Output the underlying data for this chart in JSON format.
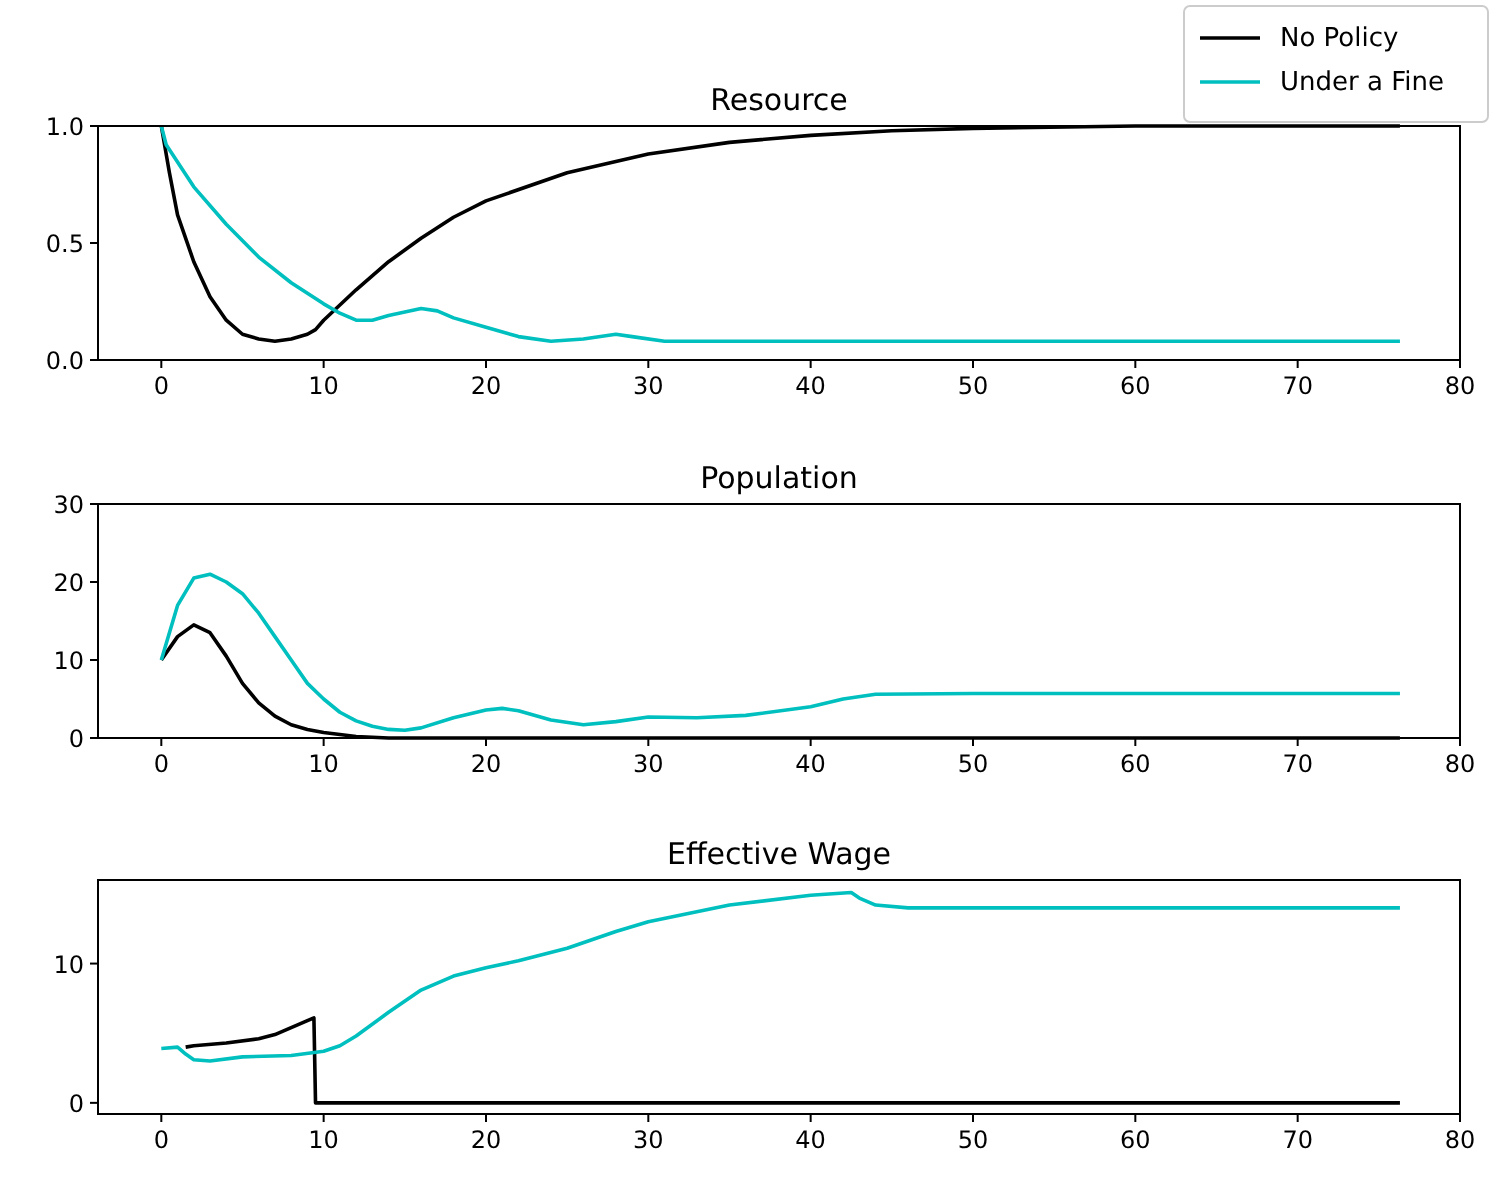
{
  "chart_data": [
    {
      "type": "line",
      "title": "Resource",
      "xlim": [
        -3.9,
        80
      ],
      "xticks": [
        0,
        10,
        20,
        30,
        40,
        50,
        60,
        70,
        80
      ],
      "ylim": [
        0,
        1
      ],
      "yticks": [
        {
          "value": 0,
          "label": "0.0"
        },
        {
          "value": 0.5,
          "label": "0.5"
        },
        {
          "value": 1,
          "label": "1.0"
        }
      ],
      "grid": false,
      "legend": "top right",
      "series": [
        {
          "name": "No Policy",
          "color": "#000000",
          "x": [
            0,
            0.5,
            1,
            2,
            3,
            4,
            5,
            6,
            7,
            8,
            9,
            9.5,
            10,
            12,
            14,
            16,
            18,
            20,
            25,
            30,
            35,
            40,
            45,
            50,
            60,
            76.3
          ],
          "values": [
            1.0,
            0.8,
            0.62,
            0.42,
            0.27,
            0.17,
            0.11,
            0.09,
            0.08,
            0.09,
            0.11,
            0.13,
            0.17,
            0.3,
            0.42,
            0.52,
            0.61,
            0.68,
            0.8,
            0.88,
            0.93,
            0.96,
            0.98,
            0.99,
            1.0,
            1.0
          ]
        },
        {
          "name": "Under a Fine",
          "color": "#00bfbf",
          "x": [
            0,
            0.3,
            2,
            4,
            6,
            8,
            10,
            11,
            12,
            13,
            14,
            16,
            17,
            18,
            20,
            22,
            24,
            26,
            28,
            29,
            31,
            40,
            76.3
          ],
          "values": [
            1.0,
            0.92,
            0.74,
            0.58,
            0.44,
            0.33,
            0.24,
            0.2,
            0.17,
            0.17,
            0.19,
            0.22,
            0.21,
            0.18,
            0.14,
            0.1,
            0.08,
            0.09,
            0.11,
            0.1,
            0.08,
            0.08,
            0.08
          ]
        }
      ]
    },
    {
      "type": "line",
      "title": "Population",
      "xlim": [
        -3.9,
        80
      ],
      "xticks": [
        0,
        10,
        20,
        30,
        40,
        50,
        60,
        70,
        80
      ],
      "ylim": [
        0,
        30
      ],
      "yticks": [
        0,
        10,
        20,
        30
      ],
      "grid": false,
      "series": [
        {
          "color": "#000000",
          "x": [
            0,
            1,
            2,
            3,
            4,
            5,
            6,
            7,
            8,
            9,
            10,
            12,
            14,
            16,
            76.3
          ],
          "values": [
            10,
            13,
            14.5,
            13.5,
            10.5,
            7,
            4.5,
            2.8,
            1.7,
            1.1,
            0.7,
            0.2,
            0,
            0,
            0
          ]
        },
        {
          "color": "#00bfbf",
          "x": [
            0,
            1,
            2,
            3,
            4,
            5,
            6,
            7,
            8,
            9,
            10,
            11,
            12,
            13,
            14,
            15,
            16,
            18,
            20,
            21,
            22,
            24,
            26,
            28,
            30,
            33,
            36,
            40,
            42,
            44,
            50,
            76.3
          ],
          "values": [
            10,
            17,
            20.5,
            21,
            20,
            18.5,
            16,
            13,
            10,
            7,
            5,
            3.3,
            2.2,
            1.5,
            1.1,
            1.0,
            1.3,
            2.6,
            3.6,
            3.8,
            3.5,
            2.3,
            1.7,
            2.1,
            2.7,
            2.6,
            2.9,
            4,
            5,
            5.6,
            5.7,
            5.7
          ]
        }
      ]
    },
    {
      "type": "line",
      "title": "Effective Wage",
      "xlim": [
        -3.9,
        80
      ],
      "xticks": [
        0,
        10,
        20,
        30,
        40,
        50,
        60,
        70,
        80
      ],
      "ylim": [
        -0.8,
        16
      ],
      "yticks": [
        0,
        10
      ],
      "grid": false,
      "series": [
        {
          "color": "#000000",
          "x": [
            1.5,
            2,
            4,
            6,
            7,
            8,
            9,
            9.4,
            9.5,
            76.3
          ],
          "values": [
            4.0,
            4.1,
            4.3,
            4.6,
            4.9,
            5.4,
            5.9,
            6.1,
            0,
            0
          ]
        },
        {
          "color": "#00bfbf",
          "x": [
            0,
            1,
            1.5,
            2,
            3,
            5,
            8,
            10,
            11,
            12,
            14,
            16,
            18,
            20,
            22,
            25,
            28,
            30,
            35,
            40,
            42.5,
            43,
            44,
            46,
            76.3
          ],
          "values": [
            3.9,
            4.0,
            3.5,
            3.1,
            3.0,
            3.3,
            3.4,
            3.7,
            4.1,
            4.8,
            6.5,
            8.1,
            9.1,
            9.7,
            10.2,
            11.1,
            12.3,
            13.0,
            14.2,
            14.9,
            15.1,
            14.7,
            14.2,
            14.0,
            14.0
          ]
        }
      ]
    }
  ]
}
